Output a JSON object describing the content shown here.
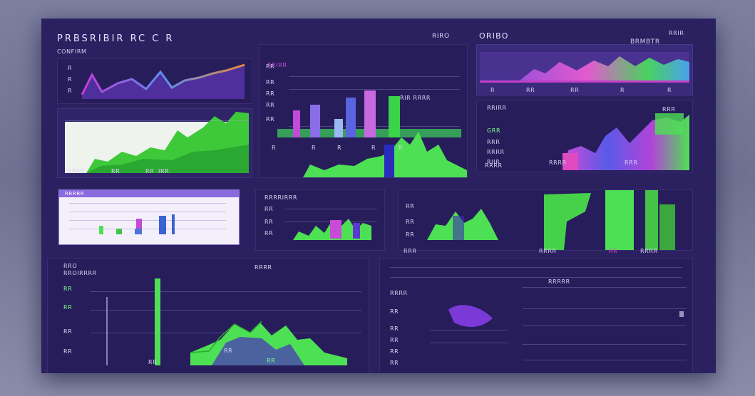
{
  "colors": {
    "bg": "#2b2060",
    "panel": "#2f2468",
    "green": "#4fe04a",
    "purple": "#7a4cd8",
    "pink": "#d24ad6",
    "blue": "#5b7ae8"
  },
  "header": {
    "title": "PRBSRIBIR RC C R",
    "subtitle": "CONFIRM",
    "center_label": "RIRO",
    "right_title": "ORIBO",
    "right_sub": "BRMBTR",
    "right_corner": "RRIR"
  },
  "panel_top_left": {
    "labels": [
      "R",
      "R",
      "R"
    ],
    "footer": [
      "GRAB",
      "RR",
      "RR",
      "IRR"
    ]
  },
  "panel_top_center": {
    "title": "RRIRR",
    "labels": [
      "RR",
      "RR",
      "RR",
      "RR",
      "RR"
    ],
    "legend": "RIR RRRR",
    "x_ticks": [
      "R",
      "R",
      "R",
      "R",
      "R"
    ]
  },
  "panel_top_right": {
    "x_ticks": [
      "R",
      "RR",
      "RR",
      "R",
      "R"
    ]
  },
  "panel_mid_right": {
    "title": "RRIRR",
    "corner": "RRR",
    "labels": [
      "GRR",
      "RRR",
      "RRRR",
      "RIIR"
    ],
    "footer": [
      "RRRR",
      "RRRR",
      "RRR"
    ]
  },
  "panel_light": {
    "title": "RRRRR"
  },
  "panel_mid_center": {
    "title": "RRRRIRRR",
    "labels": [
      "RR",
      "RR",
      "RR"
    ]
  },
  "panel_bars": {
    "labels": [
      "RR",
      "RR",
      "RR"
    ],
    "footer": [
      "RRR",
      "RRRR",
      "RR",
      "RRRR"
    ]
  },
  "panel_bottom_left": {
    "title": "RRO",
    "subtitle": "RROIRRRR",
    "header": "RRRR",
    "labels": [
      "RR",
      "RR",
      "RR",
      "RR"
    ],
    "x_ticks": [
      "RR",
      "RR",
      "RR",
      "RR"
    ]
  },
  "panel_bottom_right": {
    "title": "RRRR",
    "labels": [
      "RR",
      "RR",
      "RR",
      "RR",
      "RR"
    ],
    "right_title": "RRRRR"
  }
}
